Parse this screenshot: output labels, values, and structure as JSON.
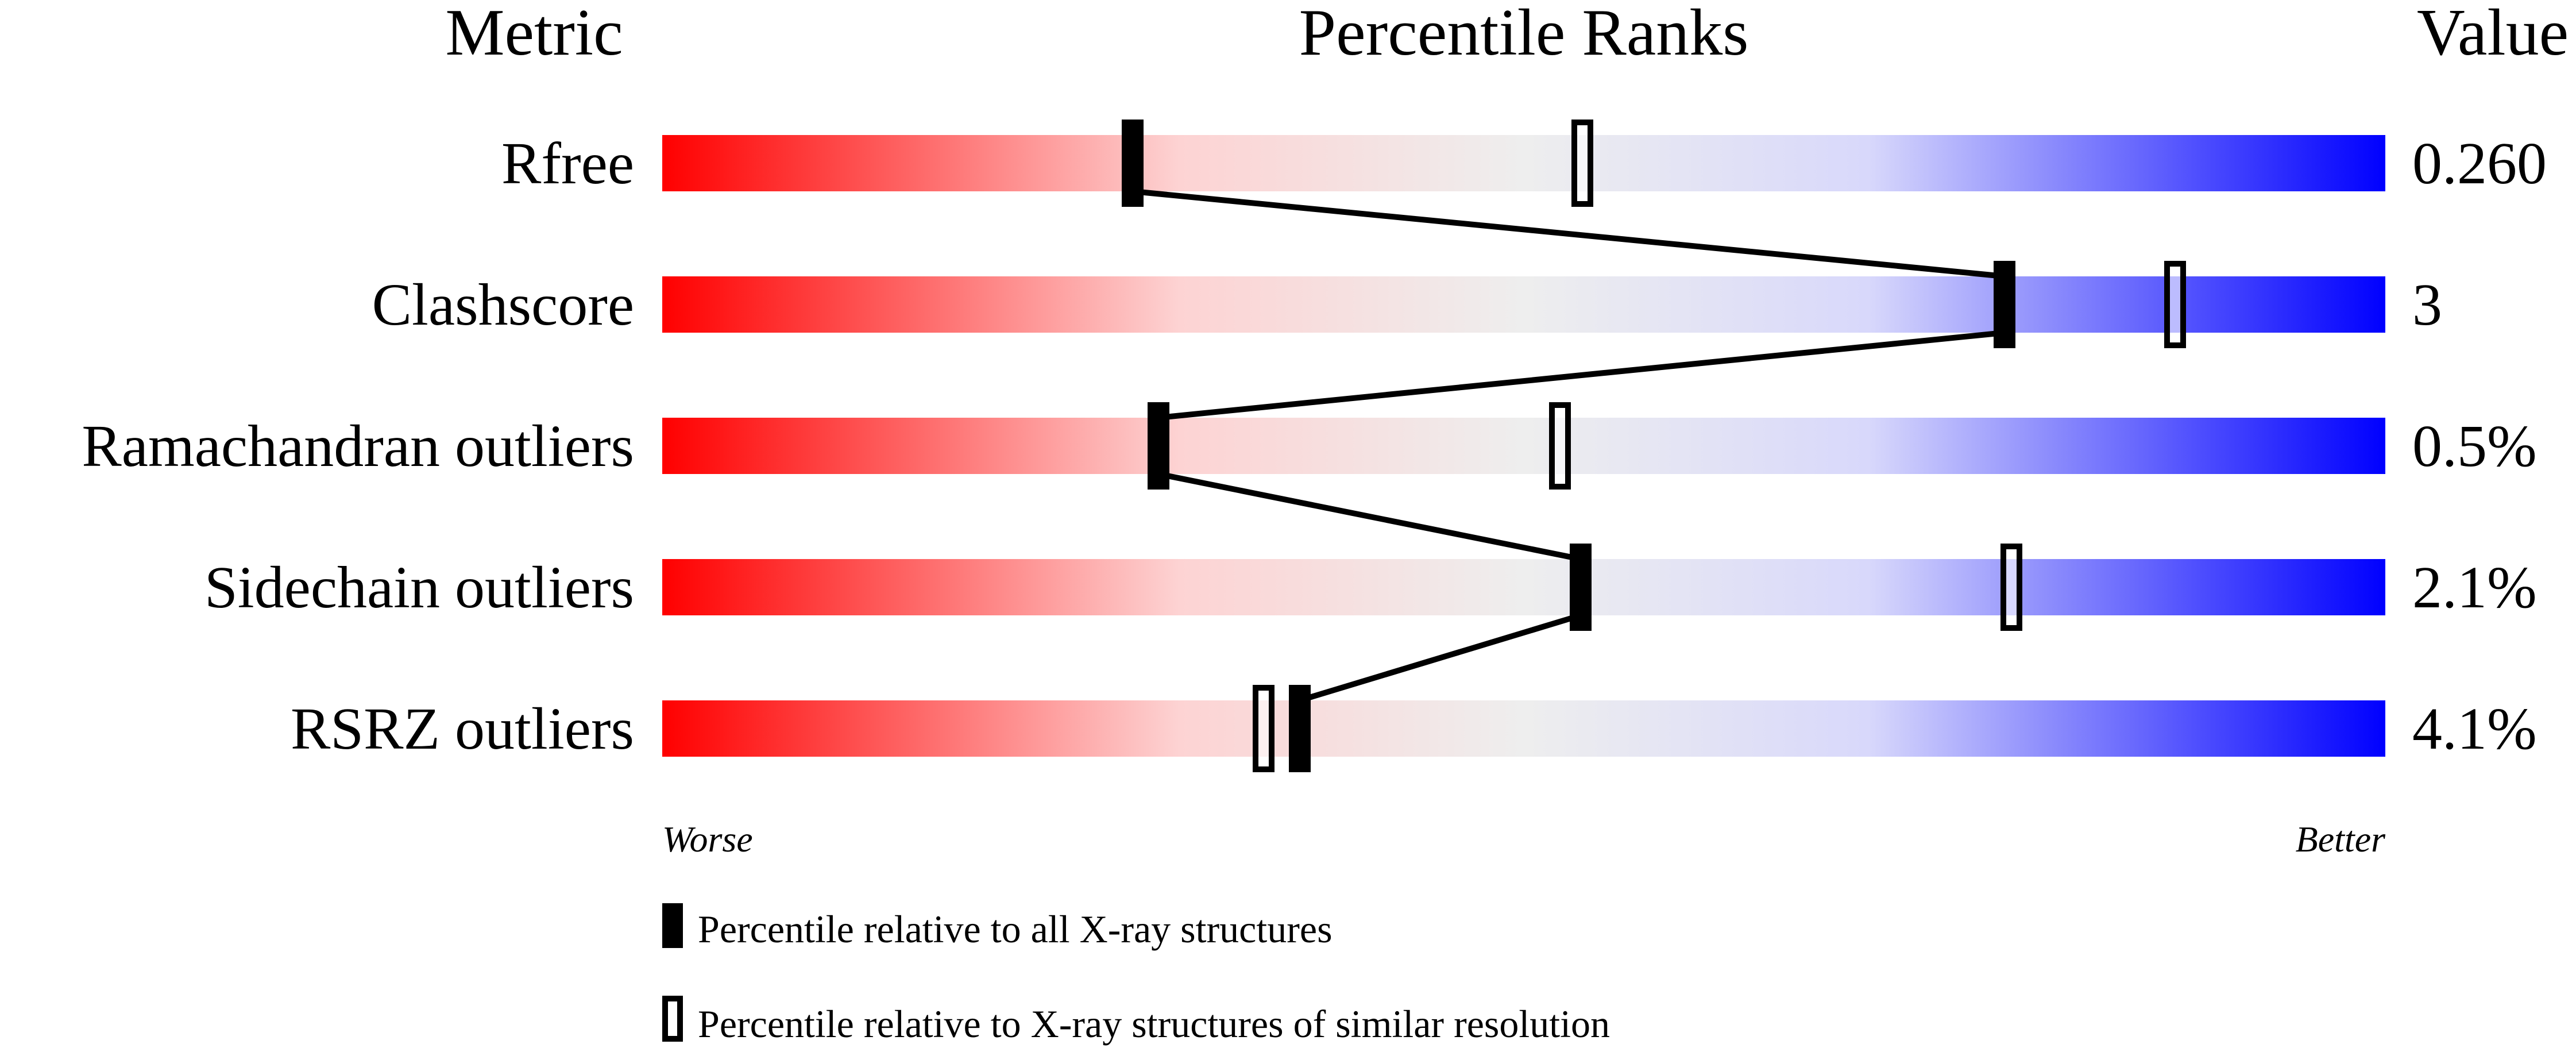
{
  "chart_data": {
    "type": "percentile-slider",
    "headers": {
      "metric": "Metric",
      "ranks": "Percentile Ranks",
      "value": "Value"
    },
    "xlim": [
      0,
      100
    ],
    "axis_labels": {
      "left": "Worse",
      "right": "Better"
    },
    "gradient_colors": [
      "#ff0000",
      "#fdd3d3",
      "#eeeeee",
      "#d8d8fb",
      "#0000ff"
    ],
    "metrics": [
      {
        "name": "Rfree",
        "value": "0.260",
        "percentile_all": 27.3,
        "percentile_similar": 53.4
      },
      {
        "name": "Clashscore",
        "value": "3",
        "percentile_all": 77.9,
        "percentile_similar": 87.8
      },
      {
        "name": "Ramachandran outliers",
        "value": "0.5%",
        "percentile_all": 28.8,
        "percentile_similar": 52.1
      },
      {
        "name": "Sidechain outliers",
        "value": "2.1%",
        "percentile_all": 53.3,
        "percentile_similar": 78.3
      },
      {
        "name": "RSRZ outliers",
        "value": "4.1%",
        "percentile_all": 37.0,
        "percentile_similar": 34.9
      }
    ],
    "legend": [
      {
        "marker": "filled",
        "label": "Percentile relative to all X-ray structures"
      },
      {
        "marker": "open",
        "label": "Percentile relative to X-ray structures of similar resolution"
      }
    ]
  }
}
